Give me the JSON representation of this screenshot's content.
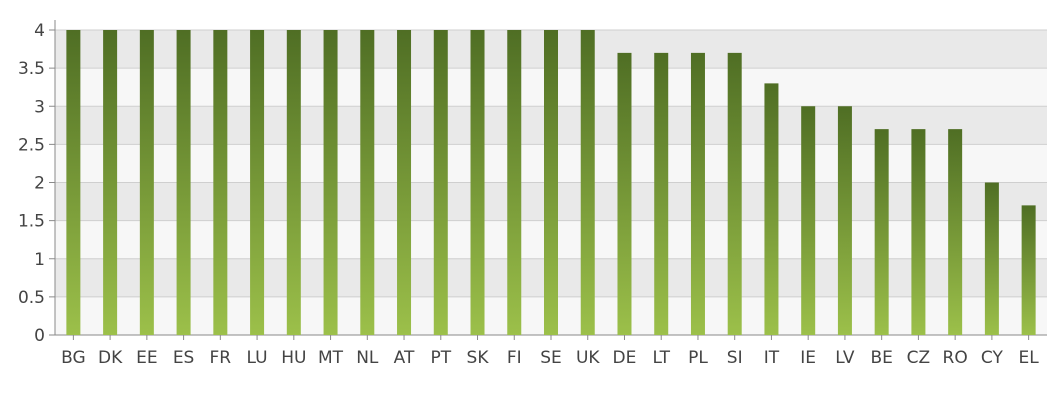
{
  "chart_data": {
    "type": "bar",
    "categories": [
      "BG",
      "DK",
      "EE",
      "ES",
      "FR",
      "LU",
      "HU",
      "MT",
      "NL",
      "AT",
      "PT",
      "SK",
      "FI",
      "SE",
      "UK",
      "DE",
      "LT",
      "PL",
      "SI",
      "IT",
      "IE",
      "LV",
      "BE",
      "CZ",
      "RO",
      "CY",
      "EL"
    ],
    "values": [
      4,
      4,
      4,
      4,
      4,
      4,
      4,
      4,
      4,
      4,
      4,
      4,
      4,
      4,
      4,
      3.7,
      3.7,
      3.7,
      3.7,
      3.3,
      3,
      3,
      2.7,
      2.7,
      2.7,
      2,
      1.7
    ],
    "yticks": [
      "0",
      "0.5",
      "1",
      "1.5",
      "2",
      "2.5",
      "3",
      "3.5",
      "4"
    ],
    "ylim": [
      0,
      4
    ],
    "title": "",
    "xlabel": "",
    "ylabel": "",
    "grid": true,
    "legend": "none",
    "colors": {
      "bar_top": "#4f6e24",
      "bar_bottom": "#9cc04a",
      "band_dark": "#e9e9e9",
      "band_light": "#f7f7f7",
      "grid_line": "#cfcfcf",
      "axis": "#8a8a8a"
    }
  }
}
